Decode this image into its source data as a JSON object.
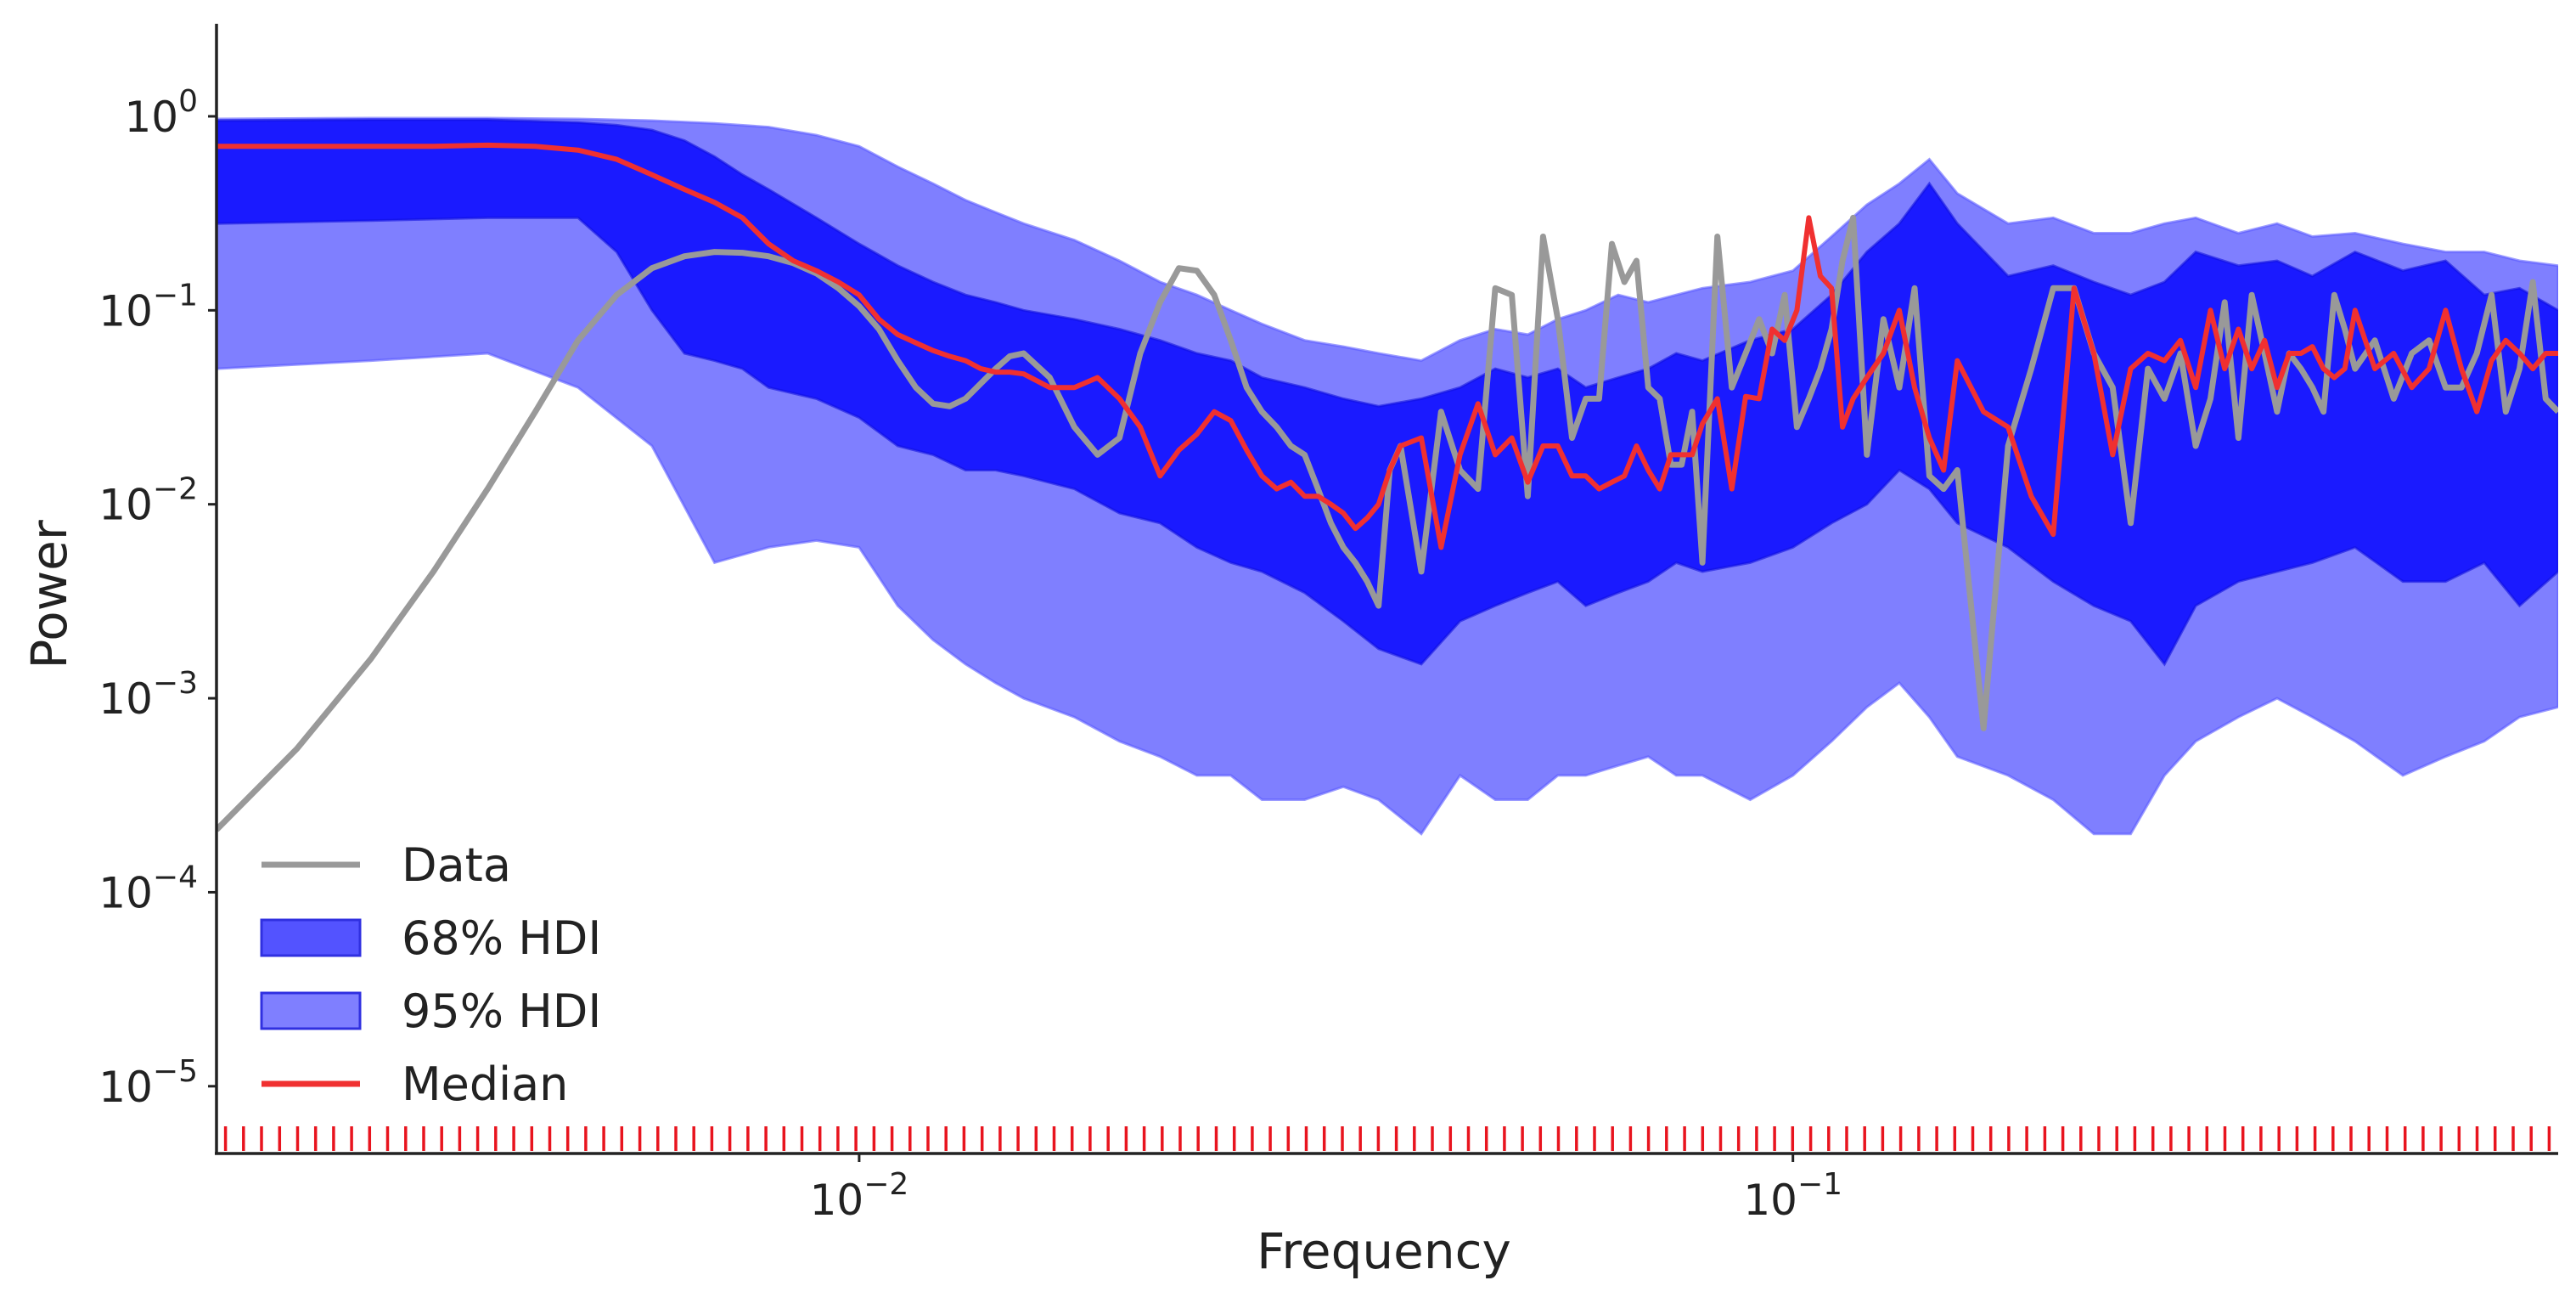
{
  "chart_data": {
    "type": "area",
    "xlabel": "Frequency",
    "ylabel": "Power",
    "xscale": "log",
    "yscale": "log",
    "xlim": [
      0.00205,
      0.66
    ],
    "ylim": [
      4.5e-06,
      3
    ],
    "grid": false,
    "legend_position": "bottom-left",
    "x_ticks": [
      {
        "value": 0.01,
        "base": "10",
        "exp": "−2"
      },
      {
        "value": 0.1,
        "base": "10",
        "exp": "−1"
      }
    ],
    "y_ticks": [
      {
        "value": 1,
        "base": "10",
        "exp": "0"
      },
      {
        "value": 0.1,
        "base": "10",
        "exp": "−1"
      },
      {
        "value": 0.01,
        "base": "10",
        "exp": "−2"
      },
      {
        "value": 0.001,
        "base": "10",
        "exp": "−3"
      },
      {
        "value": 0.0001,
        "base": "10",
        "exp": "−4"
      },
      {
        "value": 1e-05,
        "base": "10",
        "exp": "−5"
      }
    ],
    "legend": [
      {
        "label": "Data",
        "kind": "line",
        "color": "#999999"
      },
      {
        "label": "68% HDI",
        "kind": "patch",
        "color": "#1a1aff"
      },
      {
        "label": "95% HDI",
        "kind": "patch",
        "color": "#7f7fff"
      },
      {
        "label": "Median",
        "kind": "line",
        "color": "#f03030"
      }
    ],
    "colors": {
      "data": "#999999",
      "hdi68": "#1a1aff",
      "hdi95": "#7f7fff",
      "median": "#f03030",
      "rug": "#e8141e",
      "axis": "#222222"
    },
    "rug": {
      "start": 0.00205,
      "end": 0.66,
      "count": 130
    },
    "series": [
      {
        "name": "Data",
        "x": [
          0.00205,
          0.0025,
          0.003,
          0.0035,
          0.004,
          0.0045,
          0.005,
          0.0055,
          0.006,
          0.0065,
          0.007,
          0.0075,
          0.008,
          0.0085,
          0.009,
          0.0095,
          0.01,
          0.0105,
          0.011,
          0.0115,
          0.012,
          0.0125,
          0.013,
          0.0135,
          0.014,
          0.0145,
          0.015,
          0.016,
          0.017,
          0.018,
          0.019,
          0.02,
          0.021,
          0.022,
          0.023,
          0.024,
          0.025,
          0.026,
          0.027,
          0.028,
          0.029,
          0.03,
          0.031,
          0.032,
          0.033,
          0.034,
          0.035,
          0.036,
          0.037,
          0.038,
          0.04,
          0.042,
          0.044,
          0.046,
          0.048,
          0.05,
          0.052,
          0.054,
          0.056,
          0.058,
          0.06,
          0.062,
          0.064,
          0.066,
          0.068,
          0.07,
          0.072,
          0.074,
          0.076,
          0.078,
          0.08,
          0.083,
          0.086,
          0.089,
          0.092,
          0.095,
          0.098,
          0.101,
          0.104,
          0.107,
          0.11,
          0.113,
          0.116,
          0.12,
          0.125,
          0.13,
          0.135,
          0.14,
          0.145,
          0.15,
          0.16,
          0.17,
          0.18,
          0.19,
          0.2,
          0.21,
          0.22,
          0.23,
          0.24,
          0.25,
          0.26,
          0.27,
          0.28,
          0.29,
          0.3,
          0.31,
          0.32,
          0.33,
          0.34,
          0.35,
          0.36,
          0.37,
          0.38,
          0.39,
          0.4,
          0.42,
          0.44,
          0.46,
          0.48,
          0.5,
          0.52,
          0.54,
          0.56,
          0.58,
          0.6,
          0.62,
          0.64,
          0.66
        ],
        "values": [
          0.00021,
          0.00055,
          0.0016,
          0.0045,
          0.012,
          0.03,
          0.07,
          0.12,
          0.165,
          0.19,
          0.2,
          0.198,
          0.19,
          0.175,
          0.155,
          0.13,
          0.105,
          0.08,
          0.055,
          0.04,
          0.033,
          0.032,
          0.035,
          0.042,
          0.05,
          0.058,
          0.06,
          0.045,
          0.025,
          0.018,
          0.022,
          0.06,
          0.11,
          0.165,
          0.16,
          0.12,
          0.07,
          0.04,
          0.03,
          0.025,
          0.02,
          0.018,
          0.012,
          0.008,
          0.006,
          0.005,
          0.004,
          0.003,
          0.015,
          0.02,
          0.0045,
          0.03,
          0.015,
          0.012,
          0.13,
          0.12,
          0.011,
          0.24,
          0.09,
          0.022,
          0.035,
          0.035,
          0.22,
          0.14,
          0.18,
          0.04,
          0.035,
          0.016,
          0.016,
          0.03,
          0.005,
          0.24,
          0.04,
          0.06,
          0.09,
          0.06,
          0.12,
          0.025,
          0.035,
          0.05,
          0.08,
          0.18,
          0.3,
          0.018,
          0.09,
          0.04,
          0.13,
          0.014,
          0.012,
          0.015,
          0.0007,
          0.02,
          0.05,
          0.13,
          0.13,
          0.06,
          0.04,
          0.008,
          0.05,
          0.035,
          0.06,
          0.02,
          0.035,
          0.11,
          0.022,
          0.12,
          0.06,
          0.03,
          0.06,
          0.05,
          0.04,
          0.03,
          0.12,
          0.08,
          0.05,
          0.07,
          0.035,
          0.06,
          0.07,
          0.04,
          0.04,
          0.06,
          0.12,
          0.03,
          0.05,
          0.14,
          0.035,
          0.03
        ]
      },
      {
        "name": "Median",
        "x": [
          0.00205,
          0.0025,
          0.003,
          0.0035,
          0.004,
          0.0045,
          0.005,
          0.0055,
          0.006,
          0.0065,
          0.007,
          0.0075,
          0.008,
          0.0085,
          0.009,
          0.0095,
          0.01,
          0.0105,
          0.011,
          0.0115,
          0.012,
          0.0125,
          0.013,
          0.0135,
          0.014,
          0.0145,
          0.015,
          0.016,
          0.017,
          0.018,
          0.019,
          0.02,
          0.021,
          0.022,
          0.023,
          0.024,
          0.025,
          0.026,
          0.027,
          0.028,
          0.029,
          0.03,
          0.031,
          0.032,
          0.033,
          0.034,
          0.035,
          0.036,
          0.037,
          0.038,
          0.04,
          0.042,
          0.044,
          0.046,
          0.048,
          0.05,
          0.052,
          0.054,
          0.056,
          0.058,
          0.06,
          0.062,
          0.064,
          0.066,
          0.068,
          0.07,
          0.072,
          0.074,
          0.076,
          0.078,
          0.08,
          0.083,
          0.086,
          0.089,
          0.092,
          0.095,
          0.098,
          0.101,
          0.104,
          0.107,
          0.11,
          0.113,
          0.116,
          0.12,
          0.125,
          0.13,
          0.135,
          0.14,
          0.145,
          0.15,
          0.16,
          0.17,
          0.18,
          0.19,
          0.2,
          0.21,
          0.22,
          0.23,
          0.24,
          0.25,
          0.26,
          0.27,
          0.28,
          0.29,
          0.3,
          0.31,
          0.32,
          0.33,
          0.34,
          0.35,
          0.36,
          0.37,
          0.38,
          0.39,
          0.4,
          0.42,
          0.44,
          0.46,
          0.48,
          0.5,
          0.52,
          0.54,
          0.56,
          0.58,
          0.6,
          0.62,
          0.64,
          0.66
        ],
        "values": [
          0.7,
          0.7,
          0.7,
          0.7,
          0.71,
          0.7,
          0.67,
          0.6,
          0.5,
          0.42,
          0.36,
          0.3,
          0.22,
          0.18,
          0.16,
          0.14,
          0.12,
          0.09,
          0.075,
          0.068,
          0.062,
          0.058,
          0.055,
          0.05,
          0.048,
          0.048,
          0.047,
          0.04,
          0.04,
          0.045,
          0.035,
          0.025,
          0.014,
          0.019,
          0.023,
          0.03,
          0.027,
          0.019,
          0.014,
          0.012,
          0.013,
          0.011,
          0.011,
          0.01,
          0.009,
          0.0075,
          0.0085,
          0.01,
          0.015,
          0.02,
          0.022,
          0.006,
          0.018,
          0.033,
          0.018,
          0.022,
          0.013,
          0.02,
          0.02,
          0.014,
          0.014,
          0.012,
          0.013,
          0.014,
          0.02,
          0.015,
          0.012,
          0.018,
          0.018,
          0.018,
          0.026,
          0.035,
          0.012,
          0.036,
          0.035,
          0.08,
          0.07,
          0.1,
          0.3,
          0.15,
          0.13,
          0.025,
          0.035,
          0.045,
          0.06,
          0.1,
          0.04,
          0.022,
          0.015,
          0.055,
          0.03,
          0.025,
          0.011,
          0.007,
          0.13,
          0.06,
          0.018,
          0.05,
          0.06,
          0.055,
          0.07,
          0.04,
          0.1,
          0.05,
          0.08,
          0.05,
          0.07,
          0.04,
          0.06,
          0.06,
          0.065,
          0.05,
          0.045,
          0.05,
          0.1,
          0.05,
          0.06,
          0.04,
          0.05,
          0.1,
          0.05,
          0.03,
          0.055,
          0.07,
          0.06,
          0.05,
          0.06,
          0.06
        ]
      },
      {
        "name": "68% HDI",
        "x": [
          0.00205,
          0.003,
          0.004,
          0.005,
          0.0055,
          0.006,
          0.0065,
          0.007,
          0.0075,
          0.008,
          0.009,
          0.01,
          0.011,
          0.012,
          0.013,
          0.014,
          0.015,
          0.017,
          0.019,
          0.021,
          0.023,
          0.025,
          0.027,
          0.03,
          0.033,
          0.036,
          0.04,
          0.044,
          0.048,
          0.052,
          0.056,
          0.06,
          0.065,
          0.07,
          0.075,
          0.08,
          0.09,
          0.1,
          0.11,
          0.12,
          0.13,
          0.14,
          0.15,
          0.17,
          0.19,
          0.21,
          0.23,
          0.25,
          0.27,
          0.3,
          0.33,
          0.36,
          0.4,
          0.45,
          0.5,
          0.55,
          0.6,
          0.66
        ],
        "upper": [
          0.95,
          0.96,
          0.96,
          0.93,
          0.9,
          0.85,
          0.75,
          0.62,
          0.5,
          0.42,
          0.3,
          0.22,
          0.17,
          0.14,
          0.12,
          0.11,
          0.1,
          0.09,
          0.08,
          0.07,
          0.06,
          0.055,
          0.045,
          0.04,
          0.035,
          0.032,
          0.035,
          0.04,
          0.05,
          0.045,
          0.05,
          0.04,
          0.045,
          0.05,
          0.06,
          0.055,
          0.07,
          0.08,
          0.12,
          0.2,
          0.28,
          0.45,
          0.28,
          0.15,
          0.17,
          0.14,
          0.12,
          0.14,
          0.2,
          0.17,
          0.18,
          0.15,
          0.2,
          0.16,
          0.18,
          0.12,
          0.13,
          0.1
        ],
        "lower": [
          0.28,
          0.29,
          0.3,
          0.3,
          0.2,
          0.1,
          0.06,
          0.055,
          0.05,
          0.04,
          0.035,
          0.028,
          0.02,
          0.018,
          0.015,
          0.015,
          0.014,
          0.012,
          0.009,
          0.008,
          0.006,
          0.005,
          0.0045,
          0.0035,
          0.0025,
          0.0018,
          0.0015,
          0.0025,
          0.003,
          0.0035,
          0.004,
          0.003,
          0.0035,
          0.004,
          0.005,
          0.0045,
          0.005,
          0.006,
          0.008,
          0.01,
          0.015,
          0.012,
          0.008,
          0.006,
          0.004,
          0.003,
          0.0025,
          0.0015,
          0.003,
          0.004,
          0.0045,
          0.005,
          0.006,
          0.004,
          0.004,
          0.005,
          0.003,
          0.0045
        ]
      },
      {
        "name": "95% HDI",
        "x": [
          0.00205,
          0.003,
          0.004,
          0.005,
          0.006,
          0.007,
          0.008,
          0.009,
          0.01,
          0.011,
          0.012,
          0.013,
          0.014,
          0.015,
          0.017,
          0.019,
          0.021,
          0.023,
          0.025,
          0.027,
          0.03,
          0.033,
          0.036,
          0.04,
          0.044,
          0.048,
          0.052,
          0.056,
          0.06,
          0.065,
          0.07,
          0.075,
          0.08,
          0.09,
          0.1,
          0.11,
          0.12,
          0.13,
          0.14,
          0.15,
          0.17,
          0.19,
          0.21,
          0.23,
          0.25,
          0.27,
          0.3,
          0.33,
          0.36,
          0.4,
          0.45,
          0.5,
          0.55,
          0.6,
          0.66
        ],
        "upper": [
          0.97,
          0.98,
          0.98,
          0.97,
          0.95,
          0.92,
          0.88,
          0.8,
          0.7,
          0.55,
          0.45,
          0.37,
          0.32,
          0.28,
          0.23,
          0.18,
          0.14,
          0.12,
          0.1,
          0.085,
          0.07,
          0.065,
          0.06,
          0.055,
          0.07,
          0.08,
          0.075,
          0.09,
          0.1,
          0.12,
          0.11,
          0.12,
          0.13,
          0.14,
          0.16,
          0.24,
          0.35,
          0.45,
          0.6,
          0.4,
          0.28,
          0.3,
          0.25,
          0.25,
          0.28,
          0.3,
          0.25,
          0.28,
          0.24,
          0.25,
          0.22,
          0.2,
          0.2,
          0.18,
          0.17
        ],
        "lower": [
          0.05,
          0.055,
          0.06,
          0.04,
          0.02,
          0.005,
          0.006,
          0.0065,
          0.006,
          0.003,
          0.002,
          0.0015,
          0.0012,
          0.001,
          0.0008,
          0.0006,
          0.0005,
          0.0004,
          0.0004,
          0.0003,
          0.0003,
          0.00035,
          0.0003,
          0.0002,
          0.0004,
          0.0003,
          0.0003,
          0.0004,
          0.0004,
          0.00045,
          0.0005,
          0.0004,
          0.0004,
          0.0003,
          0.0004,
          0.0006,
          0.0009,
          0.0012,
          0.0008,
          0.0005,
          0.0004,
          0.0003,
          0.0002,
          0.0002,
          0.0004,
          0.0006,
          0.0008,
          0.001,
          0.0008,
          0.0006,
          0.0004,
          0.0005,
          0.0006,
          0.0008,
          0.0009
        ]
      }
    ]
  }
}
